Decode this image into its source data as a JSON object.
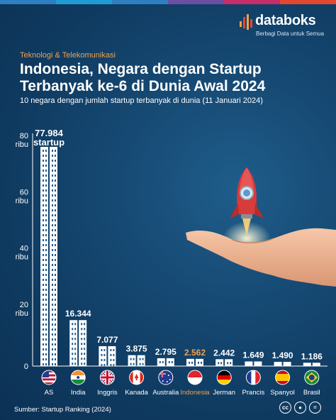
{
  "brand": {
    "name": "databoks",
    "tagline": "Berbagi Data untuk Semua",
    "stripe_colors": [
      "#2d7fc1",
      "#1f9bd6",
      "#2d7fc1",
      "#6a4fa3",
      "#c62d6b",
      "#e2482f"
    ]
  },
  "header": {
    "category": "Teknologi & Telekomunikasi",
    "title": "Indonesia, Negara dengan Startup Terbanyak ke-6 di Dunia Awal 2024",
    "subtitle": "10 negara dengan jumlah startup terbanyak di dunia (11 Januari 2024)"
  },
  "footer": {
    "source": "Sumber: Startup Ranking (2024)",
    "license_icons": [
      "cc-icon",
      "by-icon",
      "equals-icon"
    ]
  },
  "colors": {
    "bar": "#ffffff",
    "bar_pattern": "#1b5b93",
    "highlight_label": "#f0a24a",
    "accent": "#f0a24a"
  },
  "chart_data": {
    "type": "bar",
    "title": "Indonesia, Negara dengan Startup Terbanyak ke-6 di Dunia Awal 2024",
    "subtitle": "10 negara dengan jumlah startup terbanyak di dunia (11 Januari 2024)",
    "categories": [
      "AS",
      "India",
      "Inggris",
      "Kanada",
      "Australia",
      "Indonesia",
      "Jerman",
      "Prancis",
      "Spanyol",
      "Brasil"
    ],
    "values": [
      77984,
      16344,
      7077,
      3875,
      2795,
      2562,
      2442,
      1649,
      1490,
      1186
    ],
    "value_labels": [
      "77.984",
      "16.344",
      "7.077",
      "3.875",
      "2.795",
      "2.562",
      "2.442",
      "1.649",
      "1.490",
      "1.186"
    ],
    "first_value_unit": "startup",
    "highlight": "Indonesia",
    "yticks": [
      0,
      20000,
      40000,
      60000,
      80000
    ],
    "ytick_labels": [
      [
        "0"
      ],
      [
        "20",
        "ribu"
      ],
      [
        "40",
        "ribu"
      ],
      [
        "60",
        "ribu"
      ],
      [
        "80",
        "ribu"
      ]
    ],
    "ylim": [
      0,
      80000
    ],
    "grid": false,
    "flags": [
      "us-flag-icon",
      "india-flag-icon",
      "uk-flag-icon",
      "canada-flag-icon",
      "australia-flag-icon",
      "indonesia-flag-icon",
      "germany-flag-icon",
      "france-flag-icon",
      "spain-flag-icon",
      "brazil-flag-icon"
    ]
  }
}
